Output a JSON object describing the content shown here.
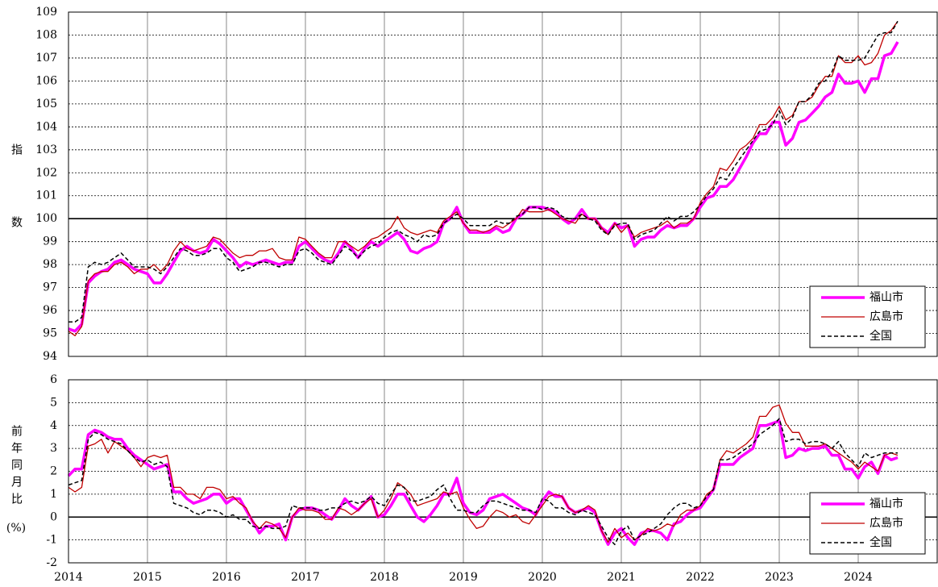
{
  "chart_data": [
    {
      "type": "line",
      "y_label": "指数",
      "x": [
        2014,
        2014.083,
        2014.167,
        2014.25,
        2014.333,
        2014.417,
        2014.5,
        2014.583,
        2014.667,
        2014.75,
        2014.833,
        2014.917,
        2015,
        2015.083,
        2015.167,
        2015.25,
        2015.333,
        2015.417,
        2015.5,
        2015.583,
        2015.667,
        2015.75,
        2015.833,
        2015.917,
        2016,
        2016.083,
        2016.167,
        2016.25,
        2016.333,
        2016.417,
        2016.5,
        2016.583,
        2016.667,
        2016.75,
        2016.833,
        2016.917,
        2017,
        2017.083,
        2017.167,
        2017.25,
        2017.333,
        2017.417,
        2017.5,
        2017.583,
        2017.667,
        2017.75,
        2017.833,
        2017.917,
        2018,
        2018.083,
        2018.167,
        2018.25,
        2018.333,
        2018.417,
        2018.5,
        2018.583,
        2018.667,
        2018.75,
        2018.833,
        2018.917,
        2019,
        2019.083,
        2019.167,
        2019.25,
        2019.333,
        2019.417,
        2019.5,
        2019.583,
        2019.667,
        2019.75,
        2019.833,
        2019.917,
        2020,
        2020.083,
        2020.167,
        2020.25,
        2020.333,
        2020.417,
        2020.5,
        2020.583,
        2020.667,
        2020.75,
        2020.833,
        2020.917,
        2021,
        2021.083,
        2021.167,
        2021.25,
        2021.333,
        2021.417,
        2021.5,
        2021.583,
        2021.667,
        2021.75,
        2021.833,
        2021.917,
        2022,
        2022.083,
        2022.167,
        2022.25,
        2022.333,
        2022.417,
        2022.5,
        2022.583,
        2022.667,
        2022.75,
        2022.833,
        2022.917,
        2023,
        2023.083,
        2023.167,
        2023.25,
        2023.333,
        2023.417,
        2023.5,
        2023.583,
        2023.667,
        2023.75,
        2023.833,
        2023.917,
        2024,
        2024.083,
        2024.167,
        2024.25,
        2024.333,
        2024.417,
        2024.5
      ],
      "series": [
        {
          "name": "福山市",
          "color": "#ff00ff",
          "dash": "solid",
          "values": [
            95.2,
            95.1,
            95.4,
            97.2,
            97.5,
            97.7,
            97.8,
            98.1,
            98.2,
            98.0,
            97.8,
            97.7,
            97.6,
            97.2,
            97.2,
            97.6,
            98.1,
            98.6,
            98.8,
            98.6,
            98.5,
            98.6,
            99.1,
            98.9,
            98.6,
            98.3,
            97.9,
            98.1,
            98.0,
            98.1,
            98.2,
            98.1,
            98.0,
            98.1,
            98.1,
            98.8,
            99.0,
            98.7,
            98.4,
            98.2,
            98.1,
            98.5,
            99.0,
            98.7,
            98.3,
            98.7,
            99.0,
            98.8,
            99.0,
            99.2,
            99.4,
            99.1,
            98.6,
            98.5,
            98.7,
            98.8,
            99.0,
            99.8,
            100.0,
            100.5,
            99.8,
            99.4,
            99.4,
            99.4,
            99.4,
            99.6,
            99.4,
            99.5,
            100.0,
            100.2,
            100.5,
            100.5,
            100.5,
            100.4,
            100.3,
            100.0,
            99.8,
            100.0,
            100.4,
            100.0,
            100.0,
            99.6,
            99.4,
            99.8,
            99.6,
            99.7,
            98.8,
            99.1,
            99.2,
            99.2,
            99.5,
            99.7,
            99.6,
            99.7,
            99.7,
            100.0,
            100.5,
            100.9,
            101.0,
            101.4,
            101.4,
            101.7,
            102.2,
            102.7,
            103.3,
            103.7,
            103.7,
            104.2,
            104.2,
            103.2,
            103.5,
            104.2,
            104.3,
            104.6,
            104.9,
            105.3,
            105.5,
            106.3,
            105.9,
            105.9,
            106.0,
            105.5,
            106.1,
            106.1,
            107.1,
            107.2,
            107.7
          ]
        },
        {
          "name": "広島市",
          "color": "#c00000",
          "dash": "solid",
          "values": [
            95.1,
            94.9,
            95.3,
            97.3,
            97.6,
            97.7,
            97.7,
            98.0,
            98.1,
            97.9,
            97.6,
            97.8,
            97.8,
            98.0,
            97.7,
            98.0,
            98.6,
            99.0,
            98.7,
            98.6,
            98.7,
            98.8,
            99.2,
            99.1,
            98.8,
            98.5,
            98.3,
            98.4,
            98.4,
            98.6,
            98.6,
            98.7,
            98.3,
            98.2,
            98.2,
            99.2,
            99.1,
            98.8,
            98.5,
            98.3,
            98.3,
            99.0,
            99.0,
            98.8,
            98.6,
            98.8,
            99.1,
            99.2,
            99.4,
            99.6,
            100.1,
            99.6,
            99.4,
            99.3,
            99.4,
            99.5,
            99.4,
            99.9,
            100.1,
            100.3,
            99.8,
            99.5,
            99.5,
            99.4,
            99.5,
            99.7,
            99.6,
            99.8,
            100.0,
            100.4,
            100.3,
            100.3,
            100.3,
            100.4,
            100.2,
            100.0,
            99.9,
            99.8,
            100.2,
            100.0,
            100.0,
            99.6,
            99.3,
            99.8,
            99.4,
            99.7,
            99.2,
            99.4,
            99.5,
            99.6,
            99.7,
            99.9,
            99.6,
            99.8,
            99.8,
            100.0,
            100.7,
            101.1,
            101.4,
            102.2,
            102.1,
            102.5,
            103.0,
            103.2,
            103.5,
            104.1,
            104.1,
            104.4,
            104.9,
            104.3,
            104.5,
            105.1,
            105.1,
            105.3,
            105.8,
            106.2,
            106.2,
            107.1,
            106.8,
            106.8,
            107.1,
            106.7,
            106.8,
            107.2,
            108.0,
            108.2,
            108.6
          ]
        },
        {
          "name": "全国",
          "color": "#000000",
          "dash": "dashed",
          "values": [
            95.5,
            95.5,
            95.7,
            97.9,
            98.1,
            98.0,
            98.1,
            98.3,
            98.5,
            98.2,
            97.9,
            97.9,
            97.9,
            97.8,
            97.6,
            97.9,
            98.3,
            98.7,
            98.6,
            98.4,
            98.4,
            98.5,
            98.7,
            98.7,
            98.3,
            98.1,
            97.7,
            97.8,
            97.9,
            98.1,
            98.1,
            98.0,
            97.9,
            98.0,
            98.0,
            98.6,
            98.7,
            98.5,
            98.2,
            98.1,
            98.0,
            98.4,
            98.8,
            98.6,
            98.3,
            98.6,
            98.8,
            98.9,
            99.2,
            99.4,
            99.5,
            99.3,
            99.2,
            99.0,
            99.3,
            99.2,
            99.3,
            99.8,
            100.0,
            100.2,
            100.0,
            99.7,
            99.7,
            99.7,
            99.7,
            99.9,
            99.8,
            99.8,
            100.1,
            100.2,
            100.5,
            100.5,
            100.4,
            100.5,
            100.4,
            100.1,
            100.0,
            100.0,
            100.2,
            100.0,
            99.9,
            99.5,
            99.3,
            99.7,
            99.8,
            99.8,
            99.1,
            99.3,
            99.4,
            99.5,
            99.8,
            100.1,
            99.9,
            100.1,
            100.1,
            100.3,
            100.6,
            101.0,
            101.3,
            101.8,
            101.7,
            102.2,
            102.6,
            103.0,
            103.4,
            103.8,
            103.9,
            104.1,
            104.7,
            104.1,
            104.4,
            105.1,
            105.1,
            105.4,
            105.9,
            106.0,
            106.4,
            107.1,
            106.9,
            106.9,
            106.9,
            107.0,
            107.5,
            108.0,
            108.1,
            108.1,
            108.6
          ]
        }
      ],
      "xlim": [
        2014,
        2025
      ],
      "ylim": [
        94,
        109
      ],
      "yticks": [
        94,
        95,
        96,
        97,
        98,
        99,
        100,
        101,
        102,
        103,
        104,
        105,
        106,
        107,
        108,
        109
      ],
      "baseline": 100,
      "grid": true,
      "legend": "lower right"
    },
    {
      "type": "line",
      "y_label": "前年同月比",
      "y_unit": "(%)",
      "x": [
        2014,
        2014.083,
        2014.167,
        2014.25,
        2014.333,
        2014.417,
        2014.5,
        2014.583,
        2014.667,
        2014.75,
        2014.833,
        2014.917,
        2015,
        2015.083,
        2015.167,
        2015.25,
        2015.333,
        2015.417,
        2015.5,
        2015.583,
        2015.667,
        2015.75,
        2015.833,
        2015.917,
        2016,
        2016.083,
        2016.167,
        2016.25,
        2016.333,
        2016.417,
        2016.5,
        2016.583,
        2016.667,
        2016.75,
        2016.833,
        2016.917,
        2017,
        2017.083,
        2017.167,
        2017.25,
        2017.333,
        2017.417,
        2017.5,
        2017.583,
        2017.667,
        2017.75,
        2017.833,
        2017.917,
        2018,
        2018.083,
        2018.167,
        2018.25,
        2018.333,
        2018.417,
        2018.5,
        2018.583,
        2018.667,
        2018.75,
        2018.833,
        2018.917,
        2019,
        2019.083,
        2019.167,
        2019.25,
        2019.333,
        2019.417,
        2019.5,
        2019.583,
        2019.667,
        2019.75,
        2019.833,
        2019.917,
        2020,
        2020.083,
        2020.167,
        2020.25,
        2020.333,
        2020.417,
        2020.5,
        2020.583,
        2020.667,
        2020.75,
        2020.833,
        2020.917,
        2021,
        2021.083,
        2021.167,
        2021.25,
        2021.333,
        2021.417,
        2021.5,
        2021.583,
        2021.667,
        2021.75,
        2021.833,
        2021.917,
        2022,
        2022.083,
        2022.167,
        2022.25,
        2022.333,
        2022.417,
        2022.5,
        2022.583,
        2022.667,
        2022.75,
        2022.833,
        2022.917,
        2023,
        2023.083,
        2023.167,
        2023.25,
        2023.333,
        2023.417,
        2023.5,
        2023.583,
        2023.667,
        2023.75,
        2023.833,
        2023.917,
        2024,
        2024.083,
        2024.167,
        2024.25,
        2024.333,
        2024.417,
        2024.5
      ],
      "series": [
        {
          "name": "福山市",
          "color": "#ff00ff",
          "dash": "solid",
          "values": [
            1.8,
            2.1,
            2.1,
            3.6,
            3.8,
            3.7,
            3.5,
            3.4,
            3.4,
            3.0,
            2.7,
            2.5,
            2.3,
            2.1,
            2.2,
            2.3,
            1.1,
            1.1,
            0.8,
            0.6,
            0.7,
            0.8,
            1.0,
            1.0,
            0.6,
            0.8,
            0.8,
            0.3,
            -0.2,
            -0.7,
            -0.4,
            -0.4,
            -0.3,
            -1.0,
            0.0,
            0.3,
            0.4,
            0.4,
            0.3,
            0.1,
            -0.1,
            0.3,
            0.8,
            0.5,
            0.3,
            0.6,
            0.9,
            0.0,
            0.1,
            0.5,
            1.0,
            1.0,
            0.5,
            0.0,
            -0.2,
            0.1,
            0.5,
            1.0,
            1.0,
            1.7,
            0.6,
            0.2,
            0.1,
            0.3,
            0.8,
            0.9,
            1.0,
            0.8,
            0.6,
            0.4,
            0.3,
            0.1,
            0.7,
            1.1,
            0.9,
            0.9,
            0.4,
            0.2,
            0.3,
            0.4,
            0.2,
            -0.6,
            -1.2,
            -0.7,
            -0.5,
            -0.9,
            -1.2,
            -0.7,
            -0.6,
            -0.6,
            -0.7,
            -1.0,
            -0.3,
            -0.2,
            0.1,
            0.3,
            0.4,
            0.8,
            1.2,
            2.3,
            2.3,
            2.3,
            2.6,
            2.8,
            3.0,
            4.0,
            4.0,
            4.1,
            4.2,
            2.6,
            2.7,
            3.0,
            2.9,
            3.0,
            3.0,
            3.1,
            2.7,
            2.7,
            2.1,
            2.1,
            1.7,
            2.2,
            2.4,
            1.9,
            2.7,
            2.5,
            2.6
          ]
        },
        {
          "name": "広島市",
          "color": "#c00000",
          "dash": "solid",
          "values": [
            1.3,
            1.1,
            1.3,
            3.1,
            3.2,
            3.4,
            2.8,
            3.3,
            3.1,
            2.9,
            2.6,
            2.2,
            2.6,
            2.7,
            2.6,
            2.7,
            1.3,
            1.3,
            1.0,
            1.0,
            0.8,
            1.3,
            1.3,
            1.2,
            0.8,
            0.9,
            0.6,
            0.4,
            -0.2,
            -0.5,
            -0.2,
            -0.3,
            -0.5,
            -0.9,
            0.0,
            0.4,
            0.3,
            0.3,
            0.2,
            -0.1,
            -0.1,
            0.4,
            0.3,
            0.1,
            0.3,
            0.6,
            0.8,
            0.0,
            0.3,
            0.8,
            1.5,
            1.3,
            1.0,
            0.5,
            0.6,
            0.7,
            0.8,
            1.1,
            1.0,
            1.1,
            0.4,
            -0.1,
            -0.5,
            -0.4,
            0.0,
            0.3,
            0.2,
            0.0,
            0.1,
            -0.2,
            -0.3,
            0.1,
            0.5,
            0.9,
            1.0,
            0.9,
            0.4,
            0.2,
            0.3,
            0.5,
            0.3,
            -0.6,
            -1.1,
            -0.5,
            -0.9,
            -0.7,
            -1.0,
            -0.8,
            -0.5,
            -0.6,
            -0.5,
            -0.3,
            -0.4,
            0.1,
            0.3,
            0.3,
            0.5,
            1.0,
            1.2,
            2.5,
            2.9,
            2.8,
            3.0,
            3.2,
            3.5,
            4.4,
            4.4,
            4.8,
            4.9,
            4.1,
            3.7,
            3.7,
            3.1,
            3.1,
            3.1,
            3.2,
            3.0,
            2.8,
            2.6,
            2.4,
            2.1,
            2.4,
            2.2,
            2.0,
            2.7,
            2.8,
            2.7
          ]
        },
        {
          "name": "全国",
          "color": "#000000",
          "dash": "dashed",
          "values": [
            1.4,
            1.5,
            1.6,
            3.4,
            3.7,
            3.6,
            3.4,
            3.3,
            3.2,
            2.9,
            2.6,
            2.4,
            2.5,
            2.3,
            2.4,
            2.2,
            0.6,
            0.5,
            0.4,
            0.2,
            0.1,
            0.3,
            0.3,
            0.2,
            0.0,
            0.1,
            -0.1,
            -0.1,
            -0.4,
            -0.5,
            -0.4,
            -0.5,
            -0.5,
            -0.4,
            0.5,
            0.4,
            0.4,
            0.4,
            0.3,
            0.3,
            0.4,
            0.4,
            0.6,
            0.7,
            0.6,
            0.7,
            0.9,
            0.6,
            0.5,
            1.0,
            1.4,
            1.3,
            0.7,
            0.7,
            0.8,
            0.9,
            1.2,
            1.4,
            0.8,
            0.3,
            0.3,
            0.2,
            0.2,
            0.5,
            0.7,
            0.7,
            0.6,
            0.5,
            0.4,
            0.3,
            0.3,
            0.2,
            0.8,
            0.7,
            0.4,
            0.4,
            0.2,
            0.1,
            0.3,
            0.2,
            0.1,
            -0.4,
            -0.9,
            -1.2,
            -0.6,
            -0.4,
            -1.0,
            -0.8,
            -0.7,
            -0.5,
            -0.3,
            0.1,
            0.4,
            0.6,
            0.6,
            0.4,
            0.5,
            0.9,
            1.2,
            2.5,
            2.5,
            2.6,
            2.8,
            3.0,
            3.2,
            3.6,
            3.8,
            4.0,
            4.3,
            3.3,
            3.4,
            3.4,
            3.2,
            3.3,
            3.3,
            3.2,
            3.0,
            3.3,
            2.8,
            2.5,
            2.2,
            2.8,
            2.6,
            2.7,
            2.8,
            2.8,
            2.8
          ]
        }
      ],
      "xlim": [
        2014,
        2025
      ],
      "xticks": [
        2014,
        2015,
        2016,
        2017,
        2018,
        2019,
        2020,
        2021,
        2022,
        2023,
        2024
      ],
      "ylim": [
        -2,
        6
      ],
      "yticks": [
        -2,
        -1,
        0,
        1,
        2,
        3,
        4,
        5,
        6
      ],
      "baseline": 0,
      "grid": true,
      "legend": "lower right"
    }
  ]
}
